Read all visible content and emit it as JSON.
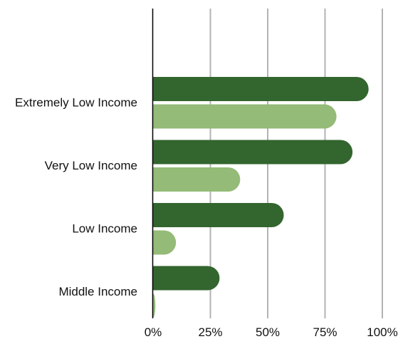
{
  "chart_data": {
    "type": "bar",
    "orientation": "horizontal",
    "categories": [
      "Extremely Low Income",
      "Very Low Income",
      "Low Income",
      "Middle Income"
    ],
    "series": [
      {
        "color": "#33652e",
        "values": [
          94,
          87,
          57,
          29
        ]
      },
      {
        "color": "#94bb77",
        "values": [
          80,
          38,
          10,
          1
        ]
      }
    ],
    "xlim": [
      0,
      100
    ],
    "x_ticks": [
      "0%",
      "25%",
      "50%",
      "75%",
      "100%"
    ],
    "grid": "vertical",
    "legend": "none"
  }
}
